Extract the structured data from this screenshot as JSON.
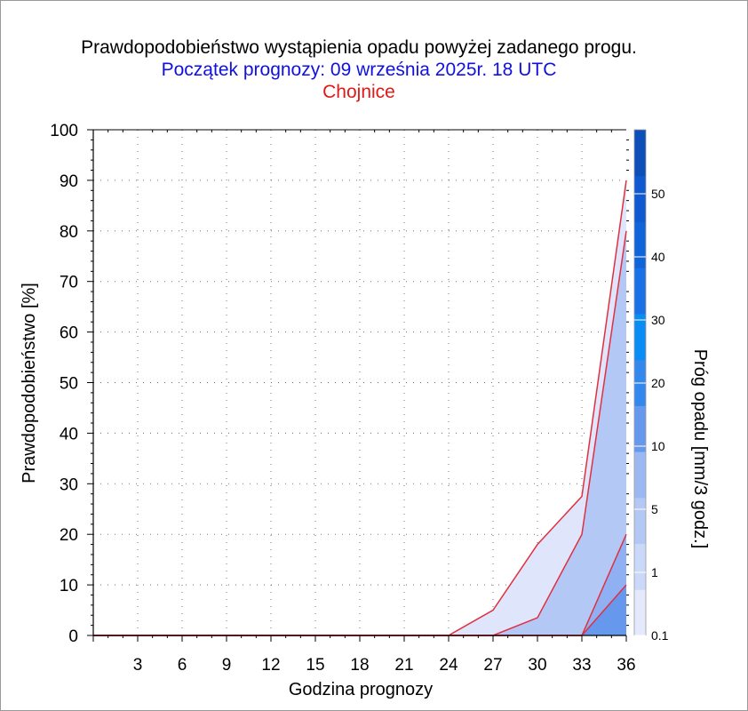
{
  "title": "Prawdopodobieństwo wystąpienia opadu powyżej zadanego progu.",
  "subtitle": "Początek prognozy: 09 września 2025r. 18 UTC",
  "location": "Chojnice",
  "colors": {
    "title": "#000000",
    "subtitle": "#1010e0",
    "location": "#e01818",
    "line": "#e03040"
  },
  "chart_data": {
    "type": "area",
    "xlabel": "Godzina prognozy",
    "ylabel": "Prawdopodobieństwo [%]",
    "x": [
      0,
      3,
      6,
      9,
      12,
      15,
      18,
      21,
      24,
      27,
      30,
      33,
      36
    ],
    "xticks": [
      "3",
      "6",
      "9",
      "12",
      "15",
      "18",
      "21",
      "24",
      "27",
      "30",
      "33",
      "36"
    ],
    "yticks": [
      "0",
      "10",
      "20",
      "30",
      "40",
      "50",
      "60",
      "70",
      "80",
      "90",
      "100"
    ],
    "xlim": [
      0,
      36
    ],
    "ylim": [
      0,
      100
    ],
    "grid": true,
    "series": [
      {
        "name": "0.1",
        "color": "#dfe6fb",
        "values": [
          0,
          0,
          0,
          0,
          0,
          0,
          0,
          0,
          0,
          5,
          18,
          27.5,
          90
        ]
      },
      {
        "name": "1",
        "color": "#b4c8f6",
        "values": [
          0,
          0,
          0,
          0,
          0,
          0,
          0,
          0,
          0,
          0,
          3.5,
          20,
          80
        ]
      },
      {
        "name": "5",
        "color": "#8fb0f2",
        "values": [
          0,
          0,
          0,
          0,
          0,
          0,
          0,
          0,
          0,
          0,
          0,
          0,
          20
        ]
      },
      {
        "name": "10",
        "color": "#6699ee",
        "values": [
          0,
          0,
          0,
          0,
          0,
          0,
          0,
          0,
          0,
          0,
          0,
          0,
          10
        ]
      }
    ],
    "colorbar": {
      "label": "Próg opadu [mm/3 godz.]",
      "ticks": [
        "0.1",
        "1",
        "5",
        "10",
        "20",
        "30",
        "40",
        "50"
      ],
      "colors": [
        "#e4eafc",
        "#cad8f9",
        "#b4c8f6",
        "#9bb8f3",
        "#6699ee",
        "#3388ee",
        "#0a8cf5",
        "#1a70e6",
        "#1064da",
        "#0f5ad0",
        "#0d4eb8"
      ]
    }
  }
}
